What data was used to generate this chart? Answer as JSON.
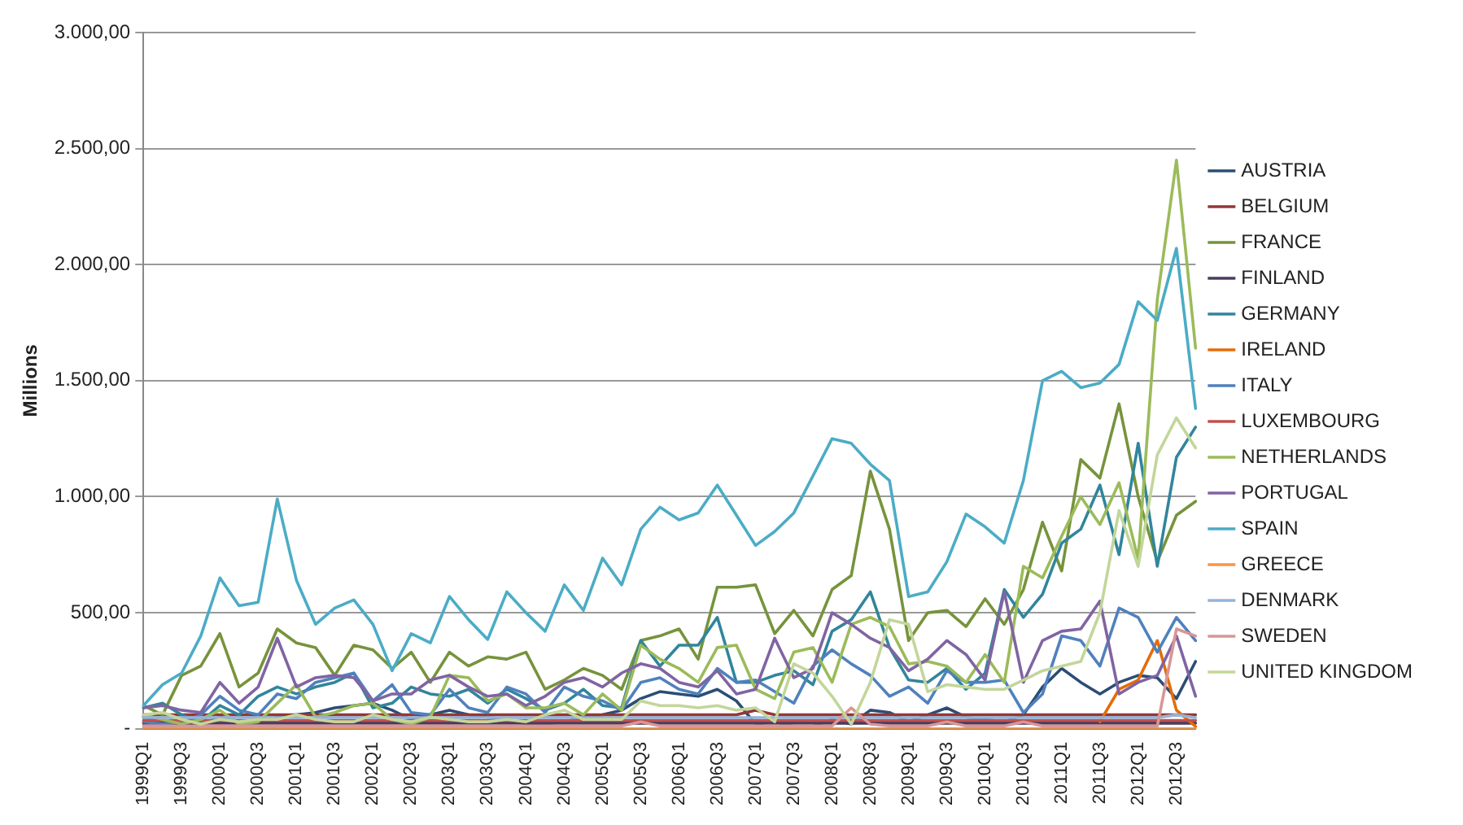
{
  "chart_data": {
    "type": "line",
    "ylabel": "Millions",
    "categories": [
      "1999Q1",
      null,
      "1999Q3",
      null,
      "2000Q1",
      null,
      "2000Q3",
      null,
      "2001Q1",
      null,
      "2001Q3",
      null,
      "2002Q1",
      null,
      "2002Q3",
      null,
      "2003Q1",
      null,
      "2003Q3",
      null,
      "2004Q1",
      null,
      "2004Q3",
      null,
      "2005Q1",
      null,
      "2005Q3",
      null,
      "2006Q1",
      null,
      "2006Q3",
      null,
      "2007Q1",
      null,
      "2007Q3",
      null,
      "2008Q1",
      null,
      "2008Q3",
      null,
      "2009Q1",
      null,
      "2009Q3",
      null,
      "2010Q1",
      null,
      "2010Q3",
      null,
      "2011Q1",
      null,
      "2011Q3",
      null,
      "2012Q1",
      null,
      "2012Q3",
      null
    ],
    "ylim": [
      0,
      3000
    ],
    "yticks": [
      {
        "value": 0,
        "label": "-"
      },
      {
        "value": 500,
        "label": "500,00"
      },
      {
        "value": 1000,
        "label": "1.000,00"
      },
      {
        "value": 1500,
        "label": "1.500,00"
      },
      {
        "value": 2000,
        "label": "2.000,00"
      },
      {
        "value": 2500,
        "label": "2.500,00"
      },
      {
        "value": 3000,
        "label": "3.000,00"
      }
    ],
    "grid": "y",
    "legend": "right",
    "marker": "none",
    "line_style": "solid",
    "series": [
      {
        "name": "AUSTRIA",
        "color": "#2c4d75",
        "values": [
          50,
          30,
          20,
          20,
          50,
          30,
          30,
          50,
          60,
          70,
          90,
          100,
          110,
          80,
          40,
          60,
          80,
          60,
          50,
          40,
          20,
          20,
          30,
          50,
          60,
          80,
          130,
          160,
          150,
          140,
          170,
          120,
          20,
          30,
          10,
          10,
          40,
          20,
          80,
          70,
          30,
          60,
          90,
          50,
          40,
          30,
          60,
          180,
          260,
          200,
          150,
          200,
          230,
          220,
          130,
          290
        ]
      },
      {
        "name": "BELGIUM",
        "color": "#953735",
        "values": [
          60,
          60,
          60,
          60,
          60,
          60,
          60,
          60,
          60,
          60,
          60,
          60,
          60,
          60,
          60,
          60,
          60,
          60,
          60,
          60,
          60,
          60,
          60,
          60,
          60,
          60,
          60,
          60,
          60,
          60,
          60,
          60,
          80,
          60,
          60,
          60,
          60,
          60,
          60,
          60,
          60,
          60,
          60,
          60,
          60,
          60,
          60,
          60,
          60,
          60,
          60,
          60,
          60,
          60,
          60,
          60
        ]
      },
      {
        "name": "FRANCE",
        "color": "#77933c",
        "values": [
          100,
          60,
          230,
          270,
          410,
          180,
          240,
          430,
          370,
          350,
          230,
          360,
          340,
          260,
          330,
          200,
          330,
          270,
          310,
          300,
          330,
          170,
          210,
          260,
          230,
          170,
          380,
          400,
          430,
          300,
          610,
          610,
          620,
          410,
          510,
          400,
          600,
          660,
          1110,
          860,
          380,
          500,
          510,
          440,
          560,
          450,
          600,
          890,
          680,
          1160,
          1080,
          1400,
          1000,
          720,
          920,
          980
        ]
      },
      {
        "name": "FINLAND",
        "color": "#4b3b62",
        "values": [
          24,
          24,
          24,
          24,
          24,
          24,
          24,
          24,
          24,
          24,
          24,
          24,
          24,
          24,
          24,
          24,
          24,
          24,
          24,
          24,
          24,
          24,
          24,
          24,
          24,
          24,
          24,
          24,
          24,
          24,
          24,
          24,
          24,
          24,
          24,
          24,
          24,
          24,
          24,
          24,
          24,
          24,
          24,
          24,
          24,
          24,
          24,
          24,
          24,
          24,
          24,
          24,
          24,
          24,
          24,
          24
        ]
      },
      {
        "name": "GERMANY",
        "color": "#31859c",
        "values": [
          90,
          110,
          60,
          30,
          100,
          60,
          140,
          180,
          150,
          180,
          200,
          240,
          90,
          110,
          180,
          150,
          140,
          170,
          110,
          170,
          130,
          80,
          110,
          170,
          100,
          90,
          380,
          270,
          360,
          360,
          480,
          200,
          200,
          230,
          250,
          190,
          420,
          470,
          590,
          350,
          210,
          200,
          260,
          170,
          240,
          600,
          480,
          580,
          800,
          860,
          1050,
          750,
          1230,
          700,
          1170,
          1300
        ]
      },
      {
        "name": "IRELAND",
        "color": "#e46c0a",
        "values": [
          null,
          null,
          null,
          null,
          null,
          null,
          null,
          null,
          null,
          null,
          null,
          null,
          null,
          null,
          null,
          null,
          null,
          null,
          null,
          null,
          null,
          null,
          null,
          null,
          null,
          null,
          null,
          null,
          null,
          null,
          null,
          null,
          null,
          null,
          null,
          null,
          null,
          null,
          null,
          null,
          null,
          null,
          null,
          null,
          null,
          null,
          null,
          null,
          null,
          null,
          30,
          170,
          210,
          380,
          80,
          10
        ]
      },
      {
        "name": "ITALY",
        "color": "#4f81bd",
        "values": [
          30,
          20,
          30,
          60,
          140,
          80,
          60,
          150,
          130,
          200,
          220,
          240,
          120,
          190,
          70,
          60,
          170,
          90,
          70,
          180,
          150,
          70,
          180,
          140,
          120,
          80,
          200,
          220,
          170,
          150,
          260,
          200,
          210,
          160,
          110,
          270,
          340,
          280,
          230,
          140,
          180,
          110,
          250,
          200,
          200,
          210,
          70,
          150,
          400,
          380,
          270,
          520,
          480,
          330,
          480,
          380
        ]
      },
      {
        "name": "LUXEMBOURG",
        "color": "#c0504d",
        "values": [
          36,
          36,
          36,
          36,
          36,
          36,
          36,
          36,
          36,
          36,
          36,
          36,
          36,
          36,
          36,
          36,
          36,
          36,
          36,
          36,
          36,
          36,
          36,
          36,
          36,
          36,
          36,
          36,
          36,
          36,
          36,
          36,
          36,
          36,
          36,
          36,
          36,
          36,
          36,
          36,
          36,
          36,
          36,
          36,
          36,
          36,
          36,
          36,
          36,
          36,
          36,
          36,
          36,
          36,
          36,
          36
        ]
      },
      {
        "name": "NETHERLANDS",
        "color": "#9bbb59",
        "values": [
          60,
          40,
          20,
          40,
          80,
          20,
          30,
          110,
          190,
          50,
          70,
          100,
          110,
          40,
          20,
          50,
          230,
          220,
          120,
          150,
          90,
          90,
          110,
          60,
          150,
          80,
          360,
          300,
          260,
          200,
          350,
          360,
          170,
          130,
          330,
          350,
          200,
          450,
          480,
          440,
          280,
          290,
          270,
          200,
          320,
          200,
          700,
          650,
          830,
          1000,
          880,
          1060,
          730,
          1850,
          2450,
          1640
        ]
      },
      {
        "name": "PORTUGAL",
        "color": "#8064a2",
        "values": [
          90,
          100,
          80,
          70,
          200,
          110,
          180,
          390,
          180,
          220,
          230,
          220,
          120,
          150,
          150,
          210,
          230,
          180,
          140,
          150,
          100,
          140,
          200,
          220,
          180,
          240,
          280,
          260,
          200,
          180,
          250,
          150,
          170,
          390,
          220,
          260,
          500,
          450,
          390,
          350,
          250,
          300,
          380,
          320,
          210,
          590,
          200,
          380,
          420,
          430,
          550,
          150,
          200,
          230,
          400,
          140
        ]
      },
      {
        "name": "SPAIN",
        "color": "#4bacc6",
        "values": [
          100,
          190,
          240,
          400,
          650,
          530,
          545,
          990,
          640,
          450,
          520,
          555,
          450,
          250,
          410,
          370,
          570,
          470,
          385,
          590,
          500,
          420,
          620,
          510,
          735,
          620,
          860,
          955,
          900,
          930,
          1050,
          920,
          790,
          850,
          930,
          1090,
          1250,
          1230,
          1140,
          1070,
          570,
          590,
          720,
          925,
          870,
          800,
          1070,
          1500,
          1540,
          1470,
          1490,
          1570,
          1840,
          1760,
          2070,
          1380
        ]
      },
      {
        "name": "GREECE",
        "color": "#f79646",
        "values": [
          0,
          0,
          0,
          0,
          0,
          0,
          0,
          0,
          0,
          0,
          0,
          0,
          0,
          0,
          0,
          0,
          0,
          0,
          0,
          0,
          0,
          0,
          0,
          0,
          0,
          0,
          0,
          0,
          0,
          0,
          0,
          0,
          0,
          0,
          0,
          0,
          0,
          0,
          0,
          0,
          0,
          0,
          0,
          0,
          0,
          0,
          0,
          0,
          0,
          0,
          0,
          0,
          0,
          0,
          0,
          0
        ]
      },
      {
        "name": "DENMARK",
        "color": "#95b3d7",
        "values": [
          48,
          48,
          48,
          48,
          48,
          48,
          48,
          48,
          48,
          48,
          48,
          48,
          48,
          48,
          48,
          48,
          48,
          48,
          48,
          48,
          48,
          48,
          48,
          48,
          48,
          48,
          48,
          48,
          48,
          48,
          48,
          48,
          48,
          48,
          48,
          48,
          48,
          48,
          48,
          48,
          48,
          48,
          48,
          48,
          48,
          48,
          48,
          48,
          48,
          48,
          48,
          48,
          48,
          48,
          60,
          48
        ]
      },
      {
        "name": "SWEDEN",
        "color": "#d99694",
        "values": [
          12,
          12,
          12,
          12,
          12,
          12,
          12,
          12,
          12,
          12,
          12,
          12,
          12,
          12,
          12,
          12,
          12,
          12,
          12,
          12,
          12,
          12,
          12,
          12,
          12,
          12,
          30,
          12,
          12,
          12,
          12,
          12,
          12,
          12,
          12,
          12,
          12,
          90,
          20,
          12,
          12,
          12,
          30,
          12,
          12,
          12,
          30,
          12,
          12,
          12,
          12,
          12,
          12,
          12,
          430,
          400
        ]
      },
      {
        "name": "UNITED KINGDOM",
        "color": "#c3d69b",
        "values": [
          60,
          70,
          40,
          20,
          40,
          30,
          40,
          40,
          60,
          40,
          30,
          30,
          60,
          40,
          30,
          50,
          40,
          30,
          30,
          40,
          30,
          60,
          80,
          40,
          40,
          40,
          120,
          100,
          100,
          90,
          100,
          80,
          90,
          30,
          280,
          240,
          140,
          20,
          200,
          470,
          450,
          160,
          190,
          180,
          170,
          170,
          210,
          250,
          270,
          290,
          500,
          940,
          700,
          1180,
          1340,
          1210
        ]
      }
    ]
  }
}
